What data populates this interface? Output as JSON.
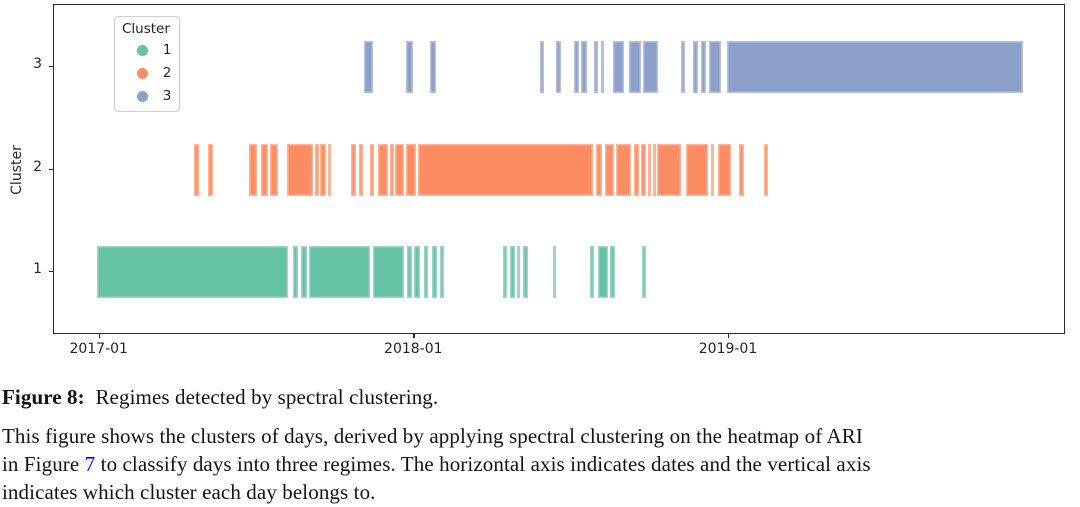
{
  "caption": {
    "label": "Figure 8:",
    "title": "Regimes detected by spectral clustering.",
    "body_line2": "This figure shows the clusters of days, derived by applying spectral clustering on the heatmap of ARI",
    "body_line3_pre": "in Figure ",
    "figure_link": "7",
    "body_line3_post": " to classify days into three regimes. The horizontal axis indicates dates and the vertical axis",
    "body_line4": "indicates which cluster each day belongs to.",
    "link_color": "#0a00ff"
  },
  "chart_data": {
    "type": "event-timeline",
    "title": "",
    "xlabel": "",
    "ylabel": "Cluster",
    "grid": false,
    "legend_position": "upper-left",
    "axis_color": "#2b2b2b",
    "x_range": [
      "2016-11-09",
      "2020-01-27"
    ],
    "x_ticks": [
      {
        "date": "2017-01-01",
        "label": "2017-01"
      },
      {
        "date": "2018-01-01",
        "label": "2018-01"
      },
      {
        "date": "2019-01-01",
        "label": "2019-01"
      }
    ],
    "y_ticks": [
      "1",
      "2",
      "3"
    ],
    "legend": {
      "title": "Cluster",
      "items": [
        {
          "label": "1",
          "color": "#66c2a5"
        },
        {
          "label": "2",
          "color": "#fc8d62"
        },
        {
          "label": "3",
          "color": "#8da0cb"
        }
      ]
    },
    "series": [
      {
        "name": "Cluster 1",
        "cluster": "1",
        "color": "#66c2a5",
        "segments": [
          [
            "2016-12-29",
            "2017-08-08"
          ],
          [
            "2017-08-13",
            "2017-08-19"
          ],
          [
            "2017-08-22",
            "2017-08-29"
          ],
          [
            "2017-09-01",
            "2017-11-11"
          ],
          [
            "2017-11-14",
            "2017-12-20"
          ],
          [
            "2017-12-23",
            "2017-12-29"
          ],
          [
            "2017-12-31",
            "2018-01-07"
          ],
          [
            "2018-01-12",
            "2018-01-17"
          ],
          [
            "2018-01-22",
            "2018-01-27"
          ],
          [
            "2018-01-31",
            "2018-02-05"
          ],
          [
            "2018-04-14",
            "2018-04-19"
          ],
          [
            "2018-04-22",
            "2018-04-28"
          ],
          [
            "2018-04-30",
            "2018-05-02"
          ],
          [
            "2018-05-07",
            "2018-05-13"
          ],
          [
            "2018-06-11",
            "2018-06-15"
          ],
          [
            "2018-07-24",
            "2018-07-29"
          ],
          [
            "2018-08-02",
            "2018-08-14"
          ],
          [
            "2018-08-16",
            "2018-08-22"
          ],
          [
            "2018-09-22",
            "2018-09-27"
          ]
        ]
      },
      {
        "name": "Cluster 2",
        "cluster": "2",
        "color": "#fc8d62",
        "segments": [
          [
            "2017-04-20",
            "2017-04-26"
          ],
          [
            "2017-05-07",
            "2017-05-13"
          ],
          [
            "2017-06-23",
            "2017-07-03"
          ],
          [
            "2017-07-07",
            "2017-07-15"
          ],
          [
            "2017-07-18",
            "2017-07-27"
          ],
          [
            "2017-08-06",
            "2017-09-05"
          ],
          [
            "2017-09-08",
            "2017-09-12"
          ],
          [
            "2017-09-14",
            "2017-09-20"
          ],
          [
            "2017-09-23",
            "2017-09-26"
          ],
          [
            "2017-10-19",
            "2017-10-25"
          ],
          [
            "2017-10-29",
            "2017-11-03"
          ],
          [
            "2017-11-10",
            "2017-11-15"
          ],
          [
            "2017-11-20",
            "2017-12-02"
          ],
          [
            "2017-12-04",
            "2017-12-08"
          ],
          [
            "2017-12-10",
            "2017-12-20"
          ],
          [
            "2017-12-22",
            "2018-01-03"
          ],
          [
            "2018-01-05",
            "2018-07-27"
          ],
          [
            "2018-07-31",
            "2018-08-07"
          ],
          [
            "2018-08-10",
            "2018-08-21"
          ],
          [
            "2018-08-23",
            "2018-09-09"
          ],
          [
            "2018-09-13",
            "2018-09-19"
          ],
          [
            "2018-09-21",
            "2018-09-27"
          ],
          [
            "2018-09-29",
            "2018-10-03"
          ],
          [
            "2018-10-05",
            "2018-10-08"
          ],
          [
            "2018-10-10",
            "2018-11-06"
          ],
          [
            "2018-11-12",
            "2018-12-08"
          ],
          [
            "2018-12-11",
            "2018-12-15"
          ],
          [
            "2018-12-19",
            "2019-01-03"
          ],
          [
            "2019-01-13",
            "2019-01-18"
          ],
          [
            "2019-02-11",
            "2019-02-15"
          ]
        ]
      },
      {
        "name": "Cluster 3",
        "cluster": "3",
        "color": "#8da0cb",
        "segments": [
          [
            "2017-11-03",
            "2017-11-14"
          ],
          [
            "2017-12-22",
            "2017-12-30"
          ],
          [
            "2018-01-19",
            "2018-01-26"
          ],
          [
            "2018-05-27",
            "2018-05-31"
          ],
          [
            "2018-06-14",
            "2018-06-20"
          ],
          [
            "2018-07-05",
            "2018-07-11"
          ],
          [
            "2018-07-13",
            "2018-07-20"
          ],
          [
            "2018-07-28",
            "2018-08-02"
          ],
          [
            "2018-08-05",
            "2018-08-09"
          ],
          [
            "2018-08-19",
            "2018-09-01"
          ],
          [
            "2018-09-07",
            "2018-09-21"
          ],
          [
            "2018-09-23",
            "2018-10-11"
          ],
          [
            "2018-11-06",
            "2018-11-11"
          ],
          [
            "2018-11-20",
            "2018-11-26"
          ],
          [
            "2018-11-29",
            "2018-12-05"
          ],
          [
            "2018-12-09",
            "2018-12-23"
          ],
          [
            "2018-12-30",
            "2019-12-08"
          ]
        ]
      }
    ]
  }
}
